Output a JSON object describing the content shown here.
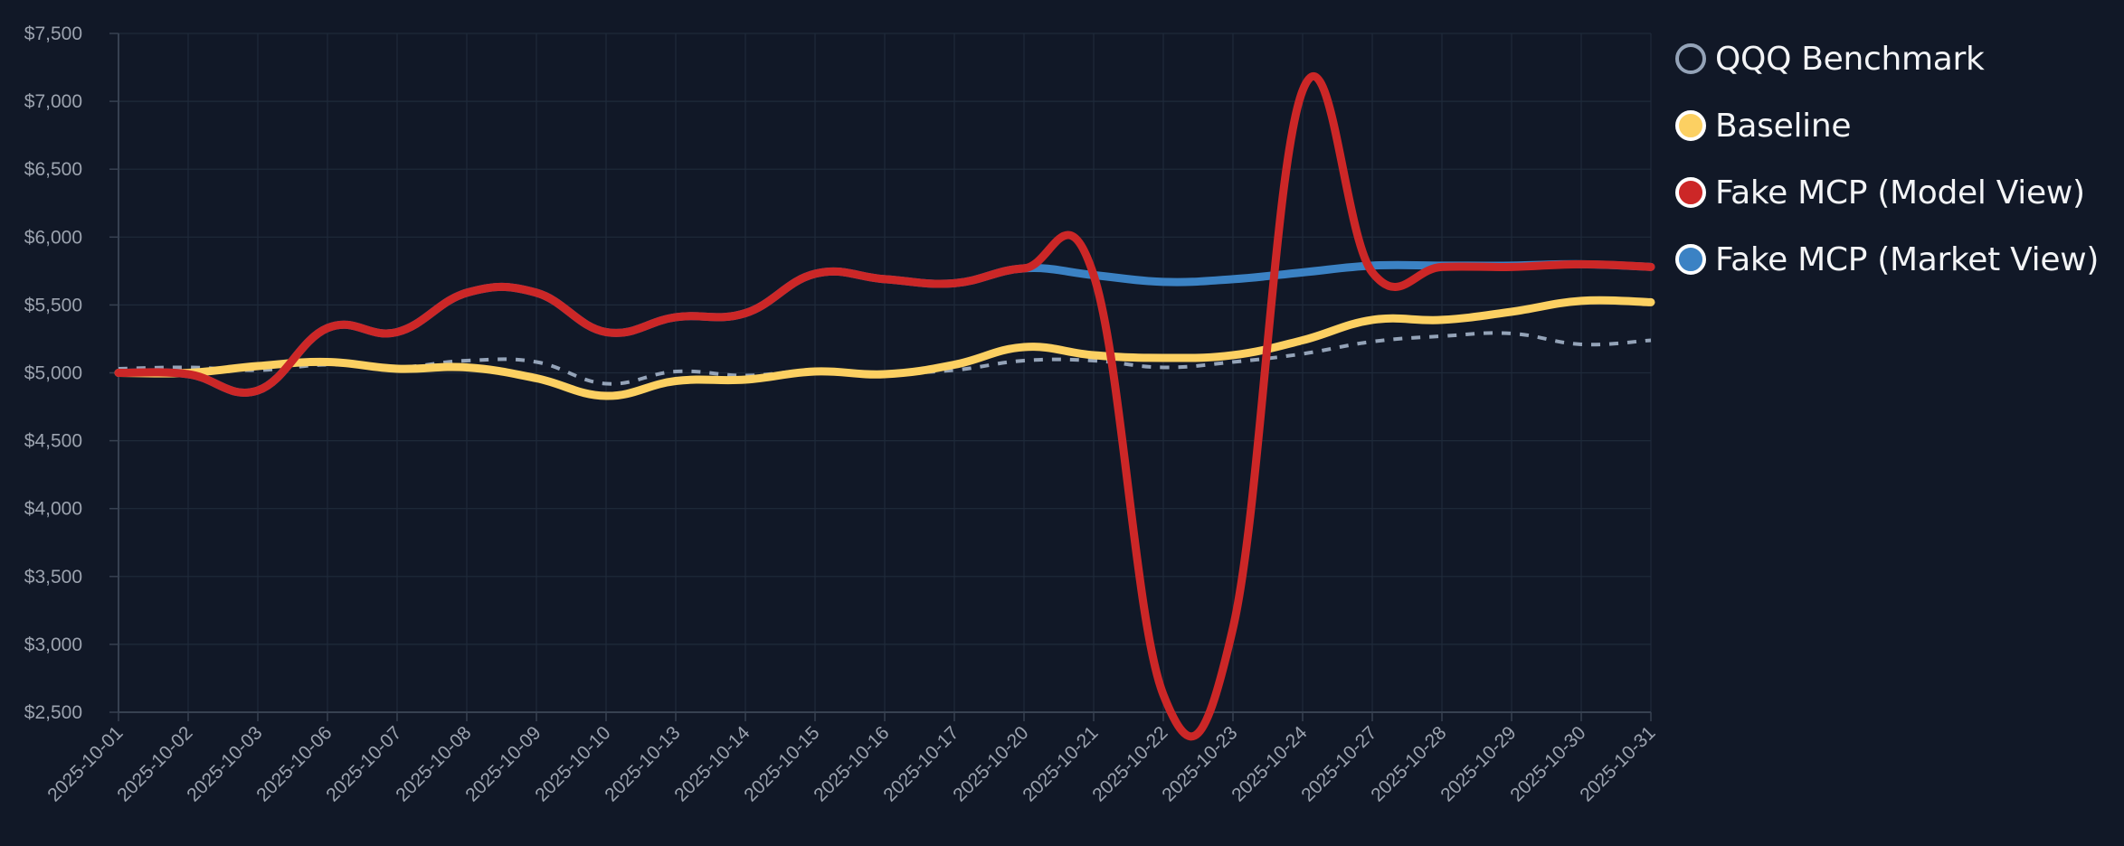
{
  "chart_data": {
    "type": "line",
    "title": "",
    "xlabel": "",
    "ylabel": "",
    "x": [
      "2025-10-01",
      "2025-10-02",
      "2025-10-03",
      "2025-10-06",
      "2025-10-07",
      "2025-10-08",
      "2025-10-09",
      "2025-10-10",
      "2025-10-13",
      "2025-10-14",
      "2025-10-15",
      "2025-10-16",
      "2025-10-17",
      "2025-10-20",
      "2025-10-21",
      "2025-10-22",
      "2025-10-23",
      "2025-10-24",
      "2025-10-27",
      "2025-10-28",
      "2025-10-29",
      "2025-10-30",
      "2025-10-31"
    ],
    "ylim": [
      2500,
      7500
    ],
    "yticks": [
      2500,
      3000,
      3500,
      4000,
      4500,
      5000,
      5500,
      6000,
      6500,
      7000,
      7500
    ],
    "ytick_labels": [
      "$2,500",
      "$3,000",
      "$3,500",
      "$4,000",
      "$4,500",
      "$5,000",
      "$5,500",
      "$6,000",
      "$6,500",
      "$7,000",
      "$7,500"
    ],
    "grid": true,
    "legend_position": "right",
    "series": [
      {
        "name": "QQQ Benchmark",
        "color": "#94a3b8",
        "dashed": true,
        "marker_style": "hollow",
        "values": [
          5030,
          5040,
          5020,
          5060,
          5040,
          5090,
          5080,
          4920,
          5010,
          4980,
          5020,
          5000,
          5020,
          5090,
          5090,
          5040,
          5080,
          5140,
          5230,
          5270,
          5290,
          5210,
          5240
        ]
      },
      {
        "name": "Baseline",
        "color": "#fcd062",
        "dashed": false,
        "marker_style": "filled",
        "values": [
          5000,
          5000,
          5050,
          5080,
          5030,
          5040,
          4960,
          4830,
          4940,
          4950,
          5010,
          4990,
          5060,
          5190,
          5130,
          5110,
          5130,
          5240,
          5390,
          5390,
          5450,
          5530,
          5520
        ]
      },
      {
        "name": "Fake MCP (Model View)",
        "color": "#cc2727",
        "dashed": false,
        "marker_style": "filled",
        "values": [
          5000,
          4990,
          4870,
          5330,
          5300,
          5590,
          5590,
          5300,
          5410,
          5440,
          5730,
          5690,
          5660,
          5770,
          5720,
          2630,
          3120,
          7080,
          5740,
          5780,
          5780,
          5800,
          5780
        ]
      },
      {
        "name": "Fake MCP (Market View)",
        "color": "#3b82c4",
        "dashed": false,
        "marker_style": "filled",
        "values": [
          5000,
          4990,
          4870,
          5330,
          5300,
          5590,
          5590,
          5300,
          5410,
          5440,
          5730,
          5690,
          5660,
          5770,
          5720,
          5670,
          5690,
          5740,
          5790,
          5790,
          5790,
          5800,
          5780
        ]
      }
    ]
  },
  "colors": {
    "background": "#111827",
    "grid": "#1f2a3a",
    "axis": "#374151",
    "tick_text": "#9ca3af",
    "legend_text": "#f3f4f6"
  }
}
